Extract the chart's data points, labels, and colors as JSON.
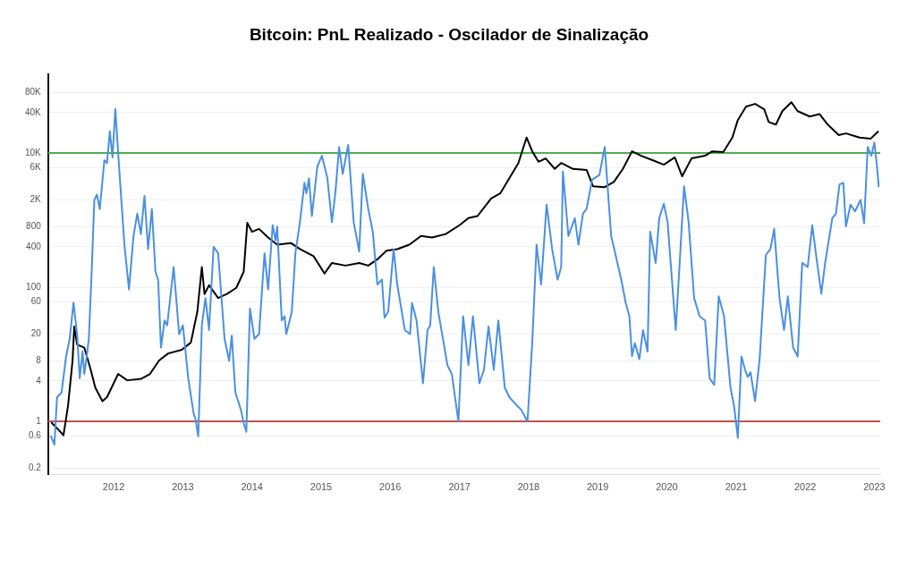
{
  "chart_data": {
    "type": "line",
    "title": "Bitcoin: PnL Realizado - Oscilador de Sinalização",
    "log": "y",
    "grid": "y",
    "legend": false,
    "marker": "none",
    "line_style": "solid",
    "xlim": [
      "2011-01-20",
      "2023-02-01"
    ],
    "xticks": [
      "2012",
      "2013",
      "2014",
      "2015",
      "2016",
      "2017",
      "2018",
      "2019",
      "2020",
      "2021",
      "2022",
      "2023"
    ],
    "ylim": [
      0.16,
      150000
    ],
    "yticks": [
      0.2,
      0.6,
      1,
      4,
      8,
      20,
      60,
      100,
      400,
      800,
      {
        "value": 2000,
        "label": "2K"
      },
      {
        "value": 6000,
        "label": "6K"
      },
      {
        "value": 10000,
        "label": "10K"
      },
      {
        "value": 40000,
        "label": "40K"
      },
      {
        "value": 80000,
        "label": "80K"
      }
    ],
    "ref_lines": [
      {
        "axis": "y",
        "value": 10000,
        "color": "#4caf50"
      },
      {
        "axis": "y",
        "value": 1,
        "color": "#c0504d"
      }
    ],
    "series": [
      {
        "color": "#4a90e2",
        "x": [
          "2011-02-04",
          "2011-02-22",
          "2011-03-08",
          "2011-04-01",
          "2011-04-25",
          "2011-05-14",
          "2011-06-03",
          "2011-06-22",
          "2011-07-06",
          "2011-07-21",
          "2011-07-30",
          "2011-08-09",
          "2011-08-23",
          "2011-09-07",
          "2011-09-21",
          "2011-10-05",
          "2011-10-20",
          "2011-11-13",
          "2011-11-27",
          "2011-12-12",
          "2011-12-26",
          "2012-01-10",
          "2012-01-29",
          "2012-02-27",
          "2012-03-22",
          "2012-04-15",
          "2012-05-05",
          "2012-05-24",
          "2012-06-12",
          "2012-07-01",
          "2012-07-21",
          "2012-08-09",
          "2012-08-23",
          "2012-09-07",
          "2012-09-26",
          "2012-10-10",
          "2012-11-13",
          "2012-12-12",
          "2013-01-01",
          "2013-01-29",
          "2013-02-27",
          "2013-03-08",
          "2013-03-23",
          "2013-04-11",
          "2013-04-30",
          "2013-05-19",
          "2013-06-12",
          "2013-07-06",
          "2013-08-09",
          "2013-09-02",
          "2013-09-16",
          "2013-10-05",
          "2013-11-03",
          "2013-11-18",
          "2013-12-02",
          "2013-12-21",
          "2014-01-14",
          "2014-02-07",
          "2014-03-08",
          "2014-03-27",
          "2014-04-20",
          "2014-05-05",
          "2014-05-14",
          "2014-06-07",
          "2014-06-22",
          "2014-07-01",
          "2014-07-30",
          "2014-08-18",
          "2014-09-11",
          "2014-10-05",
          "2014-10-15",
          "2014-10-29",
          "2014-11-13",
          "2014-12-12",
          "2015-01-05",
          "2015-02-03",
          "2015-02-27",
          "2015-03-18",
          "2015-04-06",
          "2015-04-25",
          "2015-05-24",
          "2015-06-22",
          "2015-07-21",
          "2015-08-09",
          "2015-09-07",
          "2015-10-01",
          "2015-10-25",
          "2015-11-18",
          "2015-12-02",
          "2015-12-21",
          "2016-01-19",
          "2016-02-07",
          "2016-03-18",
          "2016-04-15",
          "2016-04-25",
          "2016-05-19",
          "2016-06-22",
          "2016-07-16",
          "2016-07-30",
          "2016-08-18",
          "2016-09-11",
          "2016-10-29",
          "2016-11-22",
          "2016-12-26",
          "2017-01-20",
          "2017-02-17",
          "2017-03-13",
          "2017-04-16",
          "2017-05-10",
          "2017-06-03",
          "2017-07-01",
          "2017-07-25",
          "2017-08-28",
          "2017-09-21",
          "2017-10-25",
          "2017-11-22",
          "2017-12-26",
          "2018-01-20",
          "2018-02-12",
          "2018-03-08",
          "2018-04-06",
          "2018-05-05",
          "2018-06-03",
          "2018-06-22",
          "2018-07-01",
          "2018-07-30",
          "2018-09-02",
          "2018-09-21",
          "2018-10-15",
          "2018-11-03",
          "2018-12-02",
          "2019-01-10",
          "2019-02-07",
          "2019-03-13",
          "2019-05-05",
          "2019-05-29",
          "2019-06-17",
          "2019-07-01",
          "2019-07-16",
          "2019-08-09",
          "2019-08-28",
          "2019-09-21",
          "2019-10-05",
          "2019-11-03",
          "2019-11-22",
          "2019-12-16",
          "2020-01-05",
          "2020-02-17",
          "2020-03-13",
          "2020-04-01",
          "2020-04-25",
          "2020-05-24",
          "2020-06-22",
          "2020-07-21",
          "2020-08-14",
          "2020-09-07",
          "2020-10-01",
          "2020-10-29",
          "2020-12-02",
          "2020-12-21",
          "2021-01-10",
          "2021-01-29",
          "2021-02-17",
          "2021-03-03",
          "2021-03-18",
          "2021-04-11",
          "2021-05-05",
          "2021-06-07",
          "2021-07-01",
          "2021-07-21",
          "2021-08-18",
          "2021-09-11",
          "2021-10-01",
          "2021-10-29",
          "2021-11-22",
          "2021-12-16",
          "2022-01-14",
          "2022-02-07",
          "2022-03-03",
          "2022-03-27",
          "2022-04-16",
          "2022-05-24",
          "2022-06-12",
          "2022-07-01",
          "2022-07-21",
          "2022-08-04",
          "2022-08-28",
          "2022-09-21",
          "2022-10-20",
          "2022-11-08",
          "2022-11-27",
          "2022-12-16",
          "2023-01-01",
          "2023-01-14",
          "2023-01-24"
        ],
        "values": [
          0.6,
          0.45,
          2.3,
          2.7,
          9.3,
          17,
          59,
          20,
          4.4,
          11,
          5.1,
          8,
          17,
          170,
          2000,
          2400,
          1460,
          7800,
          7100,
          21000,
          8600,
          45000,
          6700,
          430,
          93,
          580,
          1250,
          620,
          2300,
          370,
          1460,
          170,
          130,
          12.6,
          32,
          27,
          200,
          20,
          27,
          4.4,
          1.3,
          1.1,
          0.6,
          27,
          69,
          23,
          400,
          320,
          17,
          8,
          19,
          2.7,
          1.5,
          0.95,
          0.7,
          48,
          17,
          20,
          320,
          93,
          840,
          500,
          800,
          32,
          37,
          20,
          43,
          320,
          930,
          3600,
          2500,
          4200,
          1150,
          6300,
          9100,
          4200,
          930,
          2700,
          12300,
          4900,
          13200,
          930,
          340,
          4900,
          1460,
          670,
          110,
          130,
          35,
          43,
          370,
          110,
          23,
          20,
          58,
          32,
          3.7,
          23,
          27,
          200,
          43,
          6.9,
          5,
          1,
          37,
          6.9,
          37,
          3.7,
          5.9,
          26,
          5.9,
          32,
          3.2,
          2.3,
          1.8,
          1.5,
          1,
          14.7,
          430,
          110,
          1700,
          370,
          130,
          200,
          5300,
          580,
          1070,
          430,
          1250,
          1460,
          4000,
          4700,
          12300,
          580,
          130,
          58,
          37,
          9.4,
          14.7,
          8.5,
          23,
          11,
          670,
          230,
          1070,
          1750,
          930,
          23,
          370,
          3200,
          930,
          69,
          37,
          32,
          4.4,
          3.5,
          73,
          37,
          3.2,
          1.7,
          0.57,
          9.3,
          5.9,
          4.6,
          5.4,
          2,
          8.5,
          300,
          370,
          740,
          69,
          23,
          73,
          12.6,
          9.3,
          230,
          200,
          840,
          250,
          80,
          230,
          1070,
          1250,
          3400,
          3600,
          800,
          1700,
          1350,
          2000,
          900,
          12300,
          9100,
          14400,
          6700,
          3200
        ]
      },
      {
        "color": "#000000",
        "x": [
          "2011-02-08",
          "2011-03-18",
          "2011-04-11",
          "2011-05-05",
          "2011-05-29",
          "2011-06-07",
          "2011-06-22",
          "2011-07-30",
          "2011-09-02",
          "2011-09-26",
          "2011-11-03",
          "2011-11-27",
          "2012-01-01",
          "2012-01-25",
          "2012-03-13",
          "2012-05-24",
          "2012-07-11",
          "2012-08-28",
          "2012-10-15",
          "2012-12-26",
          "2013-02-12",
          "2013-03-18",
          "2013-04-11",
          "2013-04-25",
          "2013-05-19",
          "2013-07-06",
          "2013-08-23",
          "2013-10-10",
          "2013-11-18",
          "2013-12-07",
          "2014-01-01",
          "2014-02-07",
          "2014-03-27",
          "2014-05-14",
          "2014-07-25",
          "2014-09-11",
          "2014-11-22",
          "2015-01-19",
          "2015-02-27",
          "2015-05-10",
          "2015-07-21",
          "2015-09-07",
          "2015-10-25",
          "2015-12-12",
          "2016-02-07",
          "2016-04-11",
          "2016-06-12",
          "2016-08-09",
          "2016-10-20",
          "2017-01-01",
          "2017-02-17",
          "2017-04-06",
          "2017-06-17",
          "2017-08-04",
          "2017-09-21",
          "2017-11-08",
          "2017-12-21",
          "2018-01-20",
          "2018-02-22",
          "2018-04-01",
          "2018-05-19",
          "2018-06-22",
          "2018-08-23",
          "2018-11-03",
          "2018-12-07",
          "2019-02-07",
          "2019-03-27",
          "2019-05-14",
          "2019-07-01",
          "2019-08-18",
          "2019-10-29",
          "2019-12-16",
          "2020-02-12",
          "2020-03-22",
          "2020-05-10",
          "2020-07-21",
          "2020-08-28",
          "2020-10-25",
          "2020-12-12",
          "2021-01-10",
          "2021-02-22",
          "2021-04-11",
          "2021-05-29",
          "2021-06-22",
          "2021-07-30",
          "2021-09-02",
          "2021-10-20",
          "2021-11-22",
          "2022-01-25",
          "2022-03-18",
          "2022-04-30",
          "2022-06-27",
          "2022-08-04",
          "2022-10-15",
          "2022-12-12",
          "2023-01-20"
        ],
        "values": [
          0.95,
          0.74,
          0.62,
          1.7,
          8,
          26,
          14,
          12.6,
          5.9,
          3.2,
          2,
          2.3,
          3.7,
          5.1,
          4.1,
          4.3,
          5.1,
          8.1,
          10.3,
          11.7,
          15,
          43,
          200,
          79,
          107,
          69,
          80,
          98,
          170,
          910,
          670,
          740,
          550,
          430,
          455,
          370,
          290,
          160,
          230,
          210,
          230,
          210,
          260,
          350,
          370,
          430,
          580,
          550,
          620,
          840,
          1070,
          1150,
          2100,
          2500,
          4200,
          7100,
          17000,
          10600,
          7400,
          8300,
          5800,
          7100,
          5800,
          5600,
          3200,
          3100,
          3700,
          5800,
          10600,
          9100,
          7600,
          6700,
          8600,
          4500,
          8300,
          9100,
          10600,
          10300,
          17000,
          31000,
          49000,
          54000,
          45000,
          29000,
          26500,
          42000,
          57000,
          42000,
          35000,
          38000,
          26500,
          18500,
          19600,
          17000,
          16300,
          20800
        ]
      }
    ]
  }
}
